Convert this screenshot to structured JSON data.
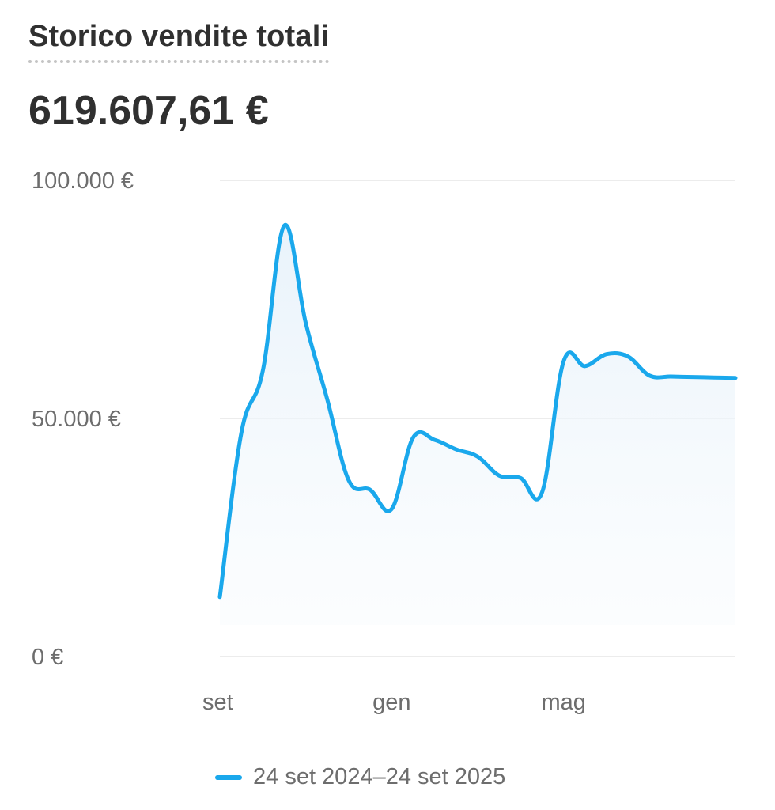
{
  "title": "Storico vendite totali",
  "total": "619.607,61 €",
  "colors": {
    "line": "#1aa8ec",
    "fill": "#eaf4fb",
    "grid": "#ececec",
    "text": "#303030",
    "muted": "#6d6d6d"
  },
  "chart_data": {
    "type": "area",
    "title": "Storico vendite totali",
    "y_tick_labels": [
      "100.000 €",
      "50.000 €",
      "0 €"
    ],
    "y_ticks": [
      100000,
      50000,
      0
    ],
    "ylim": [
      0,
      100000
    ],
    "x_tick_labels": [
      "set",
      "gen",
      "mag"
    ],
    "x_tick_positions": [
      0,
      4,
      8
    ],
    "xlim": [
      0,
      12
    ],
    "grid": true,
    "legend_position": "bottom-center",
    "series": [
      {
        "name": "24 set 2024–24 set 2025",
        "x": [
          0,
          0.5,
          1,
          1.5,
          2,
          2.5,
          3,
          3.5,
          4,
          4.5,
          5,
          5.5,
          6,
          6.5,
          7,
          7.5,
          8,
          8.5,
          9,
          9.5,
          10,
          10.5,
          11,
          11.5,
          12
        ],
        "values": [
          12500,
          47000,
          60000,
          90500,
          70000,
          54000,
          37000,
          35000,
          31000,
          46000,
          45500,
          43500,
          42000,
          38000,
          37500,
          34500,
          62000,
          61000,
          63500,
          63000,
          59000,
          58800,
          58700,
          58600,
          58500
        ]
      }
    ]
  },
  "legend": {
    "label": "24 set 2024–24 set 2025"
  }
}
